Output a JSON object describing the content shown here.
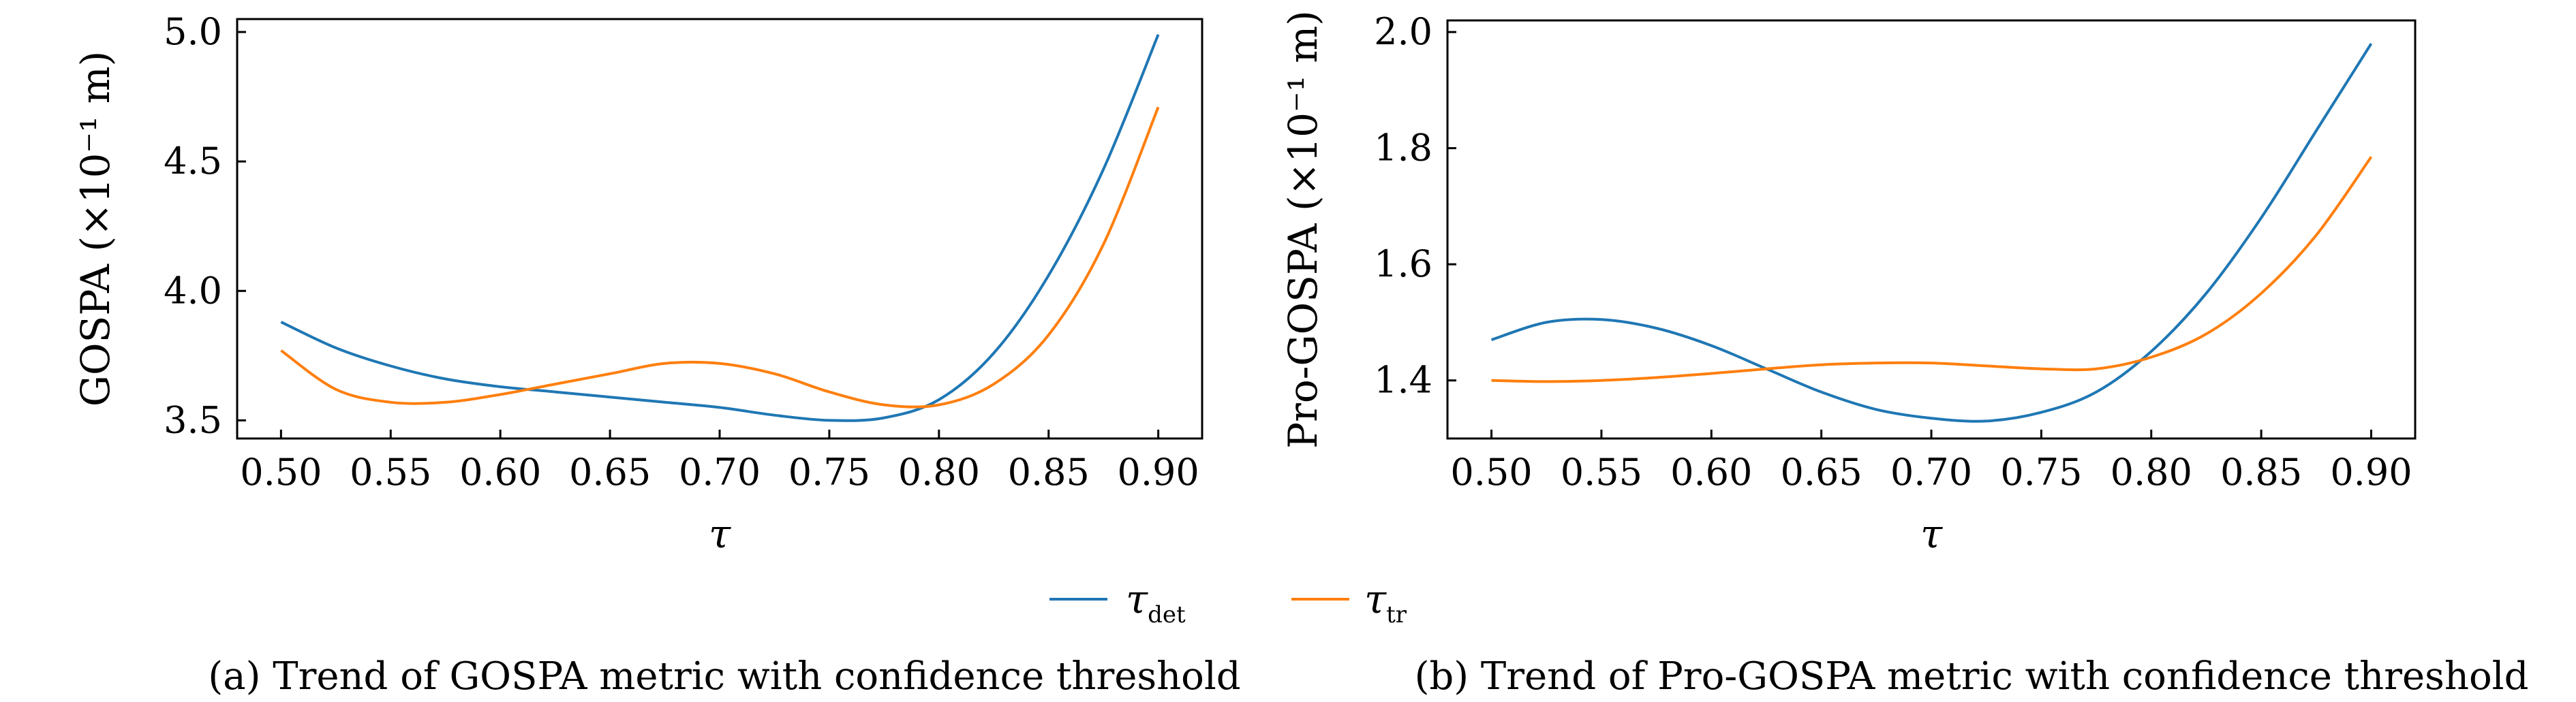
{
  "colors": {
    "tau_det": "#1f77b4",
    "tau_tr": "#ff7f0e"
  },
  "legend": [
    {
      "symbol": "τ",
      "subscript": "det",
      "color_key": "tau_det"
    },
    {
      "symbol": "τ",
      "subscript": "tr",
      "color_key": "tau_tr"
    }
  ],
  "captions": [
    "(a) Trend of GOSPA metric with confidence threshold",
    "(b) Trend of Pro-GOSPA metric with confidence threshold"
  ],
  "chart_data": [
    {
      "type": "line",
      "xlabel": "τ",
      "ylabel": "GOSPA (×10⁻¹ m)",
      "xlim": [
        0.48,
        0.92
      ],
      "ylim": [
        3.43,
        5.05
      ],
      "xticks": [
        "0.50",
        "0.55",
        "0.60",
        "0.65",
        "0.70",
        "0.75",
        "0.80",
        "0.85",
        "0.90"
      ],
      "yticks": [
        "3.5",
        "4.0",
        "4.5",
        "5.0"
      ],
      "grid": false,
      "series": [
        {
          "name": "τdet",
          "color_key": "tau_det",
          "x": [
            0.5,
            0.525,
            0.55,
            0.575,
            0.6,
            0.625,
            0.65,
            0.675,
            0.7,
            0.725,
            0.75,
            0.775,
            0.8,
            0.825,
            0.85,
            0.875,
            0.9
          ],
          "y": [
            3.88,
            3.78,
            3.71,
            3.66,
            3.63,
            3.61,
            3.59,
            3.57,
            3.55,
            3.52,
            3.5,
            3.51,
            3.58,
            3.76,
            4.06,
            4.47,
            4.99
          ]
        },
        {
          "name": "τtr",
          "color_key": "tau_tr",
          "x": [
            0.5,
            0.525,
            0.55,
            0.575,
            0.6,
            0.625,
            0.65,
            0.675,
            0.7,
            0.725,
            0.75,
            0.775,
            0.8,
            0.825,
            0.85,
            0.875,
            0.9
          ],
          "y": [
            3.77,
            3.62,
            3.57,
            3.57,
            3.6,
            3.64,
            3.68,
            3.72,
            3.72,
            3.68,
            3.61,
            3.56,
            3.56,
            3.64,
            3.83,
            4.18,
            4.71
          ]
        }
      ]
    },
    {
      "type": "line",
      "xlabel": "τ",
      "ylabel": "Pro-GOSPA (×10⁻¹ m)",
      "xlim": [
        0.48,
        0.92
      ],
      "ylim": [
        1.3,
        2.02
      ],
      "xticks": [
        "0.50",
        "0.55",
        "0.60",
        "0.65",
        "0.70",
        "0.75",
        "0.80",
        "0.85",
        "0.90"
      ],
      "yticks": [
        "1.4",
        "1.6",
        "1.8",
        "2.0"
      ],
      "grid": false,
      "series": [
        {
          "name": "τdet",
          "color_key": "tau_det",
          "x": [
            0.5,
            0.525,
            0.55,
            0.575,
            0.6,
            0.625,
            0.65,
            0.675,
            0.7,
            0.725,
            0.75,
            0.775,
            0.8,
            0.825,
            0.85,
            0.875,
            0.9
          ],
          "y": [
            1.47,
            1.5,
            1.505,
            1.49,
            1.46,
            1.42,
            1.38,
            1.35,
            1.335,
            1.33,
            1.345,
            1.38,
            1.45,
            1.55,
            1.68,
            1.83,
            1.98
          ]
        },
        {
          "name": "τtr",
          "color_key": "tau_tr",
          "x": [
            0.5,
            0.525,
            0.55,
            0.575,
            0.6,
            0.625,
            0.65,
            0.675,
            0.7,
            0.725,
            0.75,
            0.775,
            0.8,
            0.825,
            0.85,
            0.875,
            0.9
          ],
          "y": [
            1.4,
            1.398,
            1.4,
            1.405,
            1.412,
            1.42,
            1.427,
            1.43,
            1.43,
            1.425,
            1.42,
            1.42,
            1.44,
            1.48,
            1.55,
            1.65,
            1.785
          ]
        }
      ]
    }
  ]
}
